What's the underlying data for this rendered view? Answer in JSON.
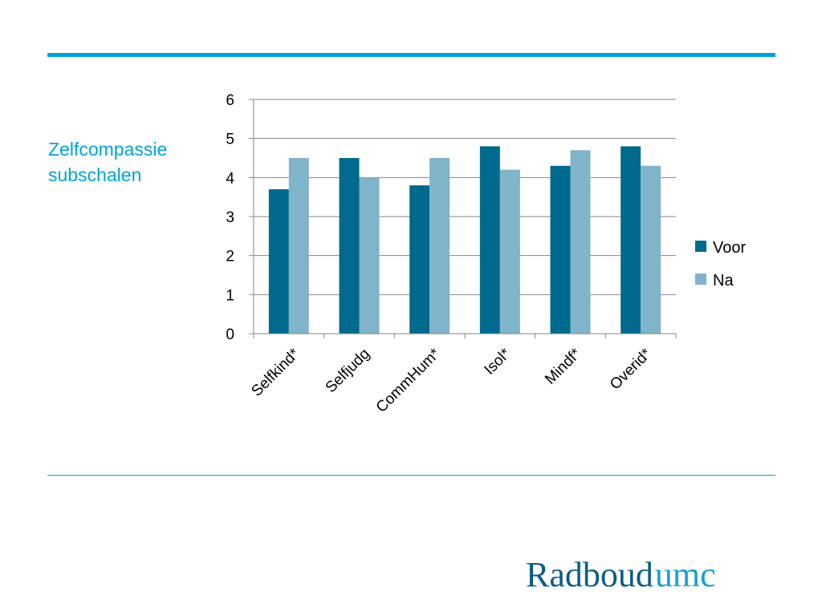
{
  "slide": {
    "title": "Zelfcompassie\nsubschalen"
  },
  "logo": {
    "part1": "Radboud",
    "part2": "umc"
  },
  "colors": {
    "accent": "#00a3d9",
    "series_voor": "#006a8e",
    "series_na": "#7fb4cb"
  },
  "chart_data": {
    "type": "bar",
    "categories": [
      "Selfkind*",
      "Selfjudg",
      "CommHum*",
      "Isol*",
      "Mindf*",
      "Overid*"
    ],
    "series": [
      {
        "name": "Voor",
        "values": [
          3.7,
          4.5,
          3.8,
          4.8,
          4.3,
          4.8
        ]
      },
      {
        "name": "Na",
        "values": [
          4.5,
          4.0,
          4.5,
          4.2,
          4.7,
          4.3
        ]
      }
    ],
    "ylim": [
      0,
      6
    ],
    "yticks": [
      0,
      1,
      2,
      3,
      4,
      5,
      6
    ],
    "grid": true,
    "legend": "right"
  }
}
